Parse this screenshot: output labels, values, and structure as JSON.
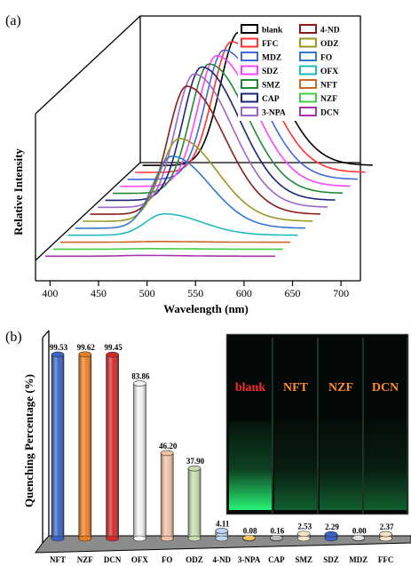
{
  "chart_data": [
    {
      "panel_label": "(a)",
      "type": "line",
      "style": "3d-waterfall",
      "xlabel": "Wavelength (nm)",
      "ylabel": "Relative Intensity",
      "xlim": [
        385,
        720
      ],
      "xticks": [
        "400",
        "450",
        "500",
        "550",
        "600",
        "650",
        "700"
      ],
      "legend_position": "top-right",
      "legend": [
        {
          "name": "blank",
          "color": "#000000"
        },
        {
          "name": "FFC",
          "color": "#ff3333"
        },
        {
          "name": "MDZ",
          "color": "#4466dd"
        },
        {
          "name": "SDZ",
          "color": "#ff44ff"
        },
        {
          "name": "SMZ",
          "color": "#228833"
        },
        {
          "name": "CAP",
          "color": "#1a237e"
        },
        {
          "name": "3-NPA",
          "color": "#9966cc"
        },
        {
          "name": "4-ND",
          "color": "#8b1a1a"
        },
        {
          "name": "ODZ",
          "color": "#999922"
        },
        {
          "name": "FO",
          "color": "#3377cc"
        },
        {
          "name": "OFX",
          "color": "#22bbbb"
        },
        {
          "name": "NFT",
          "color": "#cc6622"
        },
        {
          "name": "NZF",
          "color": "#44cc44"
        },
        {
          "name": "DCN",
          "color": "#aa33aa"
        }
      ],
      "series": [
        {
          "name": "blank",
          "peak_wavelength": 525,
          "relative_peak": 1.0,
          "color": "#000000"
        },
        {
          "name": "FFC",
          "peak_wavelength": 525,
          "relative_peak": 0.98,
          "color": "#ff3333"
        },
        {
          "name": "MDZ",
          "peak_wavelength": 525,
          "relative_peak": 0.97,
          "color": "#4466dd"
        },
        {
          "name": "SDZ",
          "peak_wavelength": 525,
          "relative_peak": 0.98,
          "color": "#ff44ff"
        },
        {
          "name": "SMZ",
          "peak_wavelength": 525,
          "relative_peak": 0.97,
          "color": "#228833"
        },
        {
          "name": "CAP",
          "peak_wavelength": 525,
          "relative_peak": 1.0,
          "color": "#1a237e"
        },
        {
          "name": "3-NPA",
          "peak_wavelength": 525,
          "relative_peak": 1.0,
          "color": "#9966cc"
        },
        {
          "name": "4-ND",
          "peak_wavelength": 525,
          "relative_peak": 0.96,
          "color": "#8b1a1a"
        },
        {
          "name": "ODZ",
          "peak_wavelength": 525,
          "relative_peak": 0.62,
          "color": "#999922"
        },
        {
          "name": "FO",
          "peak_wavelength": 525,
          "relative_peak": 0.54,
          "color": "#3377cc"
        },
        {
          "name": "OFX",
          "peak_wavelength": 525,
          "relative_peak": 0.16,
          "color": "#22bbbb"
        },
        {
          "name": "NFT",
          "peak_wavelength": 525,
          "relative_peak": 0.005,
          "color": "#cc6622"
        },
        {
          "name": "NZF",
          "peak_wavelength": 525,
          "relative_peak": 0.004,
          "color": "#44cc44"
        },
        {
          "name": "DCN",
          "peak_wavelength": 525,
          "relative_peak": 0.006,
          "color": "#aa33aa"
        }
      ]
    },
    {
      "panel_label": "(b)",
      "type": "bar",
      "style": "3d-cylinder",
      "ylabel": "Quenching Percentage (%)",
      "ylim": [
        0,
        100
      ],
      "categories": [
        "NFT",
        "NZF",
        "DCN",
        "OFX",
        "FO",
        "ODZ",
        "4-ND",
        "3-NPA",
        "CAP",
        "SMZ",
        "SDZ",
        "MDZ",
        "FFC"
      ],
      "values": [
        99.53,
        99.62,
        99.45,
        83.86,
        46.2,
        37.9,
        4.11,
        0.08,
        0.16,
        2.53,
        2.29,
        0.0,
        2.37
      ],
      "value_labels": [
        "99.53",
        "99.62",
        "99.45",
        "83.86",
        "46.20",
        "37.90",
        "4.11",
        "0.08",
        "0.16",
        "2.53",
        "2.29",
        "0.00",
        "2.37"
      ],
      "colors": [
        "#3a63c4",
        "#f07f22",
        "#d42a2a",
        "#f2f2f2",
        "#f3c2a4",
        "#c7dbb0",
        "#bcd6ef",
        "#f5c15a",
        "#bbbbbb",
        "#f6e3c6",
        "#3a63c4",
        "#dddddd",
        "#f6e3c6"
      ],
      "inset": {
        "labels": [
          "blank",
          "NFT",
          "NZF",
          "DCN"
        ],
        "label_colors": [
          "#ff2a2a",
          "#ff8c2a",
          "#ff8c2a",
          "#ff8c2a"
        ],
        "glow_levels": [
          0.95,
          0.35,
          0.35,
          0.35
        ],
        "background": "#000000",
        "glow_color": "#2aff7a"
      }
    }
  ]
}
